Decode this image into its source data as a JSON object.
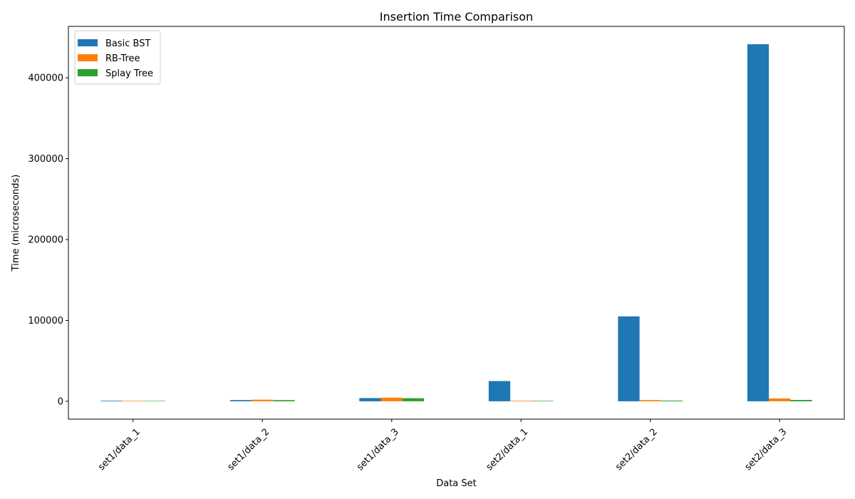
{
  "chart_data": {
    "type": "bar",
    "title": "Insertion Time Comparison",
    "xlabel": "Data Set",
    "ylabel": "Time (microseconds)",
    "categories": [
      "set1/data_1",
      "set1/data_2",
      "set1/data_3",
      "set2/data_1",
      "set2/data_2",
      "set2/data_3"
    ],
    "series": [
      {
        "name": "Basic BST",
        "color": "#1f77b4",
        "values": [
          700,
          1500,
          4000,
          25000,
          105000,
          441500
        ]
      },
      {
        "name": "RB-Tree",
        "color": "#ff7f0e",
        "values": [
          600,
          2000,
          4500,
          700,
          1500,
          3500
        ]
      },
      {
        "name": "Splay Tree",
        "color": "#2ca02c",
        "values": [
          500,
          1500,
          3800,
          600,
          900,
          1700
        ]
      }
    ],
    "ylim": [
      -22100,
      463600
    ],
    "yticks": [
      0,
      100000,
      200000,
      300000,
      400000
    ],
    "ytick_labels": [
      "0",
      "100000",
      "200000",
      "300000",
      "400000"
    ],
    "legend_position": "top-left",
    "grid": false
  }
}
